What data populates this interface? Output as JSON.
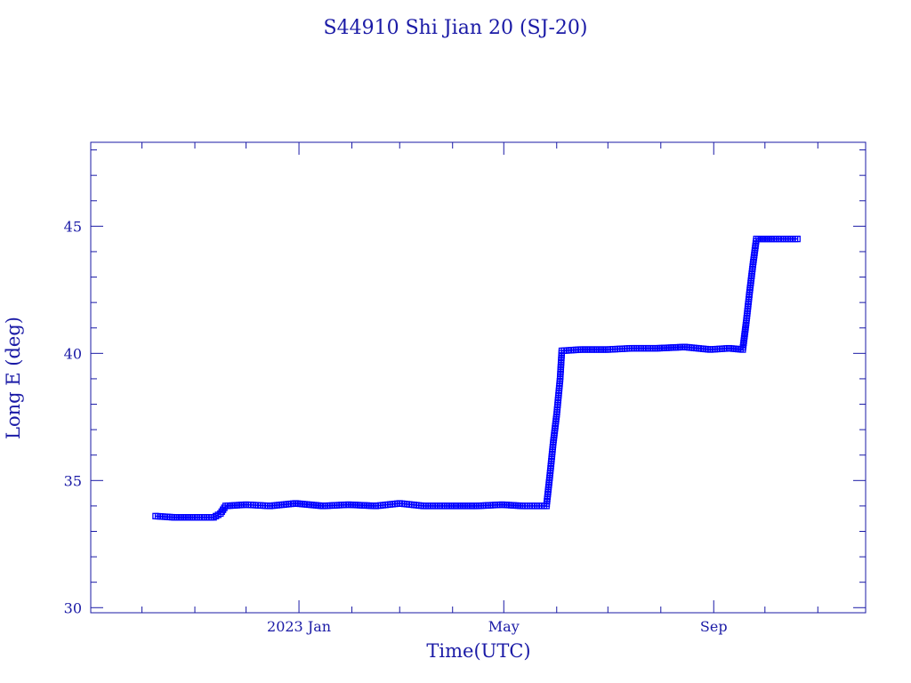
{
  "chart_data": {
    "type": "line",
    "title": "S44910 Shi Jian 20  (SJ-20)",
    "xlabel": "Time(UTC)",
    "ylabel": "Long E (deg)",
    "ylim": [
      29.8,
      48.3
    ],
    "xlim": [
      "2022-09-01",
      "2023-11-29"
    ],
    "x_ticks": [
      {
        "date": "2023-01-01",
        "label": "2023 Jan"
      },
      {
        "date": "2023-05-01",
        "label": "May"
      },
      {
        "date": "2023-09-01",
        "label": "Sep"
      }
    ],
    "y_ticks": [
      30,
      35,
      40,
      45
    ],
    "grid": false,
    "color": "#0000ff",
    "axis_color": "#1a1aa6",
    "series": [
      {
        "points": [
          [
            "2022-10-09",
            33.6
          ],
          [
            "2022-10-20",
            33.55
          ],
          [
            "2022-11-01",
            33.55
          ],
          [
            "2022-11-12",
            33.55
          ],
          [
            "2022-11-16",
            33.7
          ],
          [
            "2022-11-19",
            34.0
          ],
          [
            "2022-12-01",
            34.05
          ],
          [
            "2022-12-15",
            34.0
          ],
          [
            "2022-12-30",
            34.1
          ],
          [
            "2023-01-15",
            34.0
          ],
          [
            "2023-01-30",
            34.05
          ],
          [
            "2023-02-15",
            34.0
          ],
          [
            "2023-03-01",
            34.1
          ],
          [
            "2023-03-15",
            34.0
          ],
          [
            "2023-03-30",
            34.0
          ],
          [
            "2023-04-15",
            34.0
          ],
          [
            "2023-04-30",
            34.05
          ],
          [
            "2023-05-12",
            34.0
          ],
          [
            "2023-05-26",
            34.0
          ],
          [
            "2023-05-28",
            35.2
          ],
          [
            "2023-05-30",
            36.5
          ],
          [
            "2023-06-01",
            37.6
          ],
          [
            "2023-06-03",
            39.0
          ],
          [
            "2023-06-04",
            40.1
          ],
          [
            "2023-06-15",
            40.15
          ],
          [
            "2023-07-01",
            40.15
          ],
          [
            "2023-07-15",
            40.2
          ],
          [
            "2023-07-30",
            40.2
          ],
          [
            "2023-08-15",
            40.25
          ],
          [
            "2023-08-30",
            40.15
          ],
          [
            "2023-09-10",
            40.2
          ],
          [
            "2023-09-18",
            40.15
          ],
          [
            "2023-09-20",
            41.2
          ],
          [
            "2023-09-22",
            42.4
          ],
          [
            "2023-09-24",
            43.5
          ],
          [
            "2023-09-26",
            44.5
          ],
          [
            "2023-10-05",
            44.5
          ],
          [
            "2023-10-20",
            44.5
          ]
        ]
      }
    ]
  }
}
